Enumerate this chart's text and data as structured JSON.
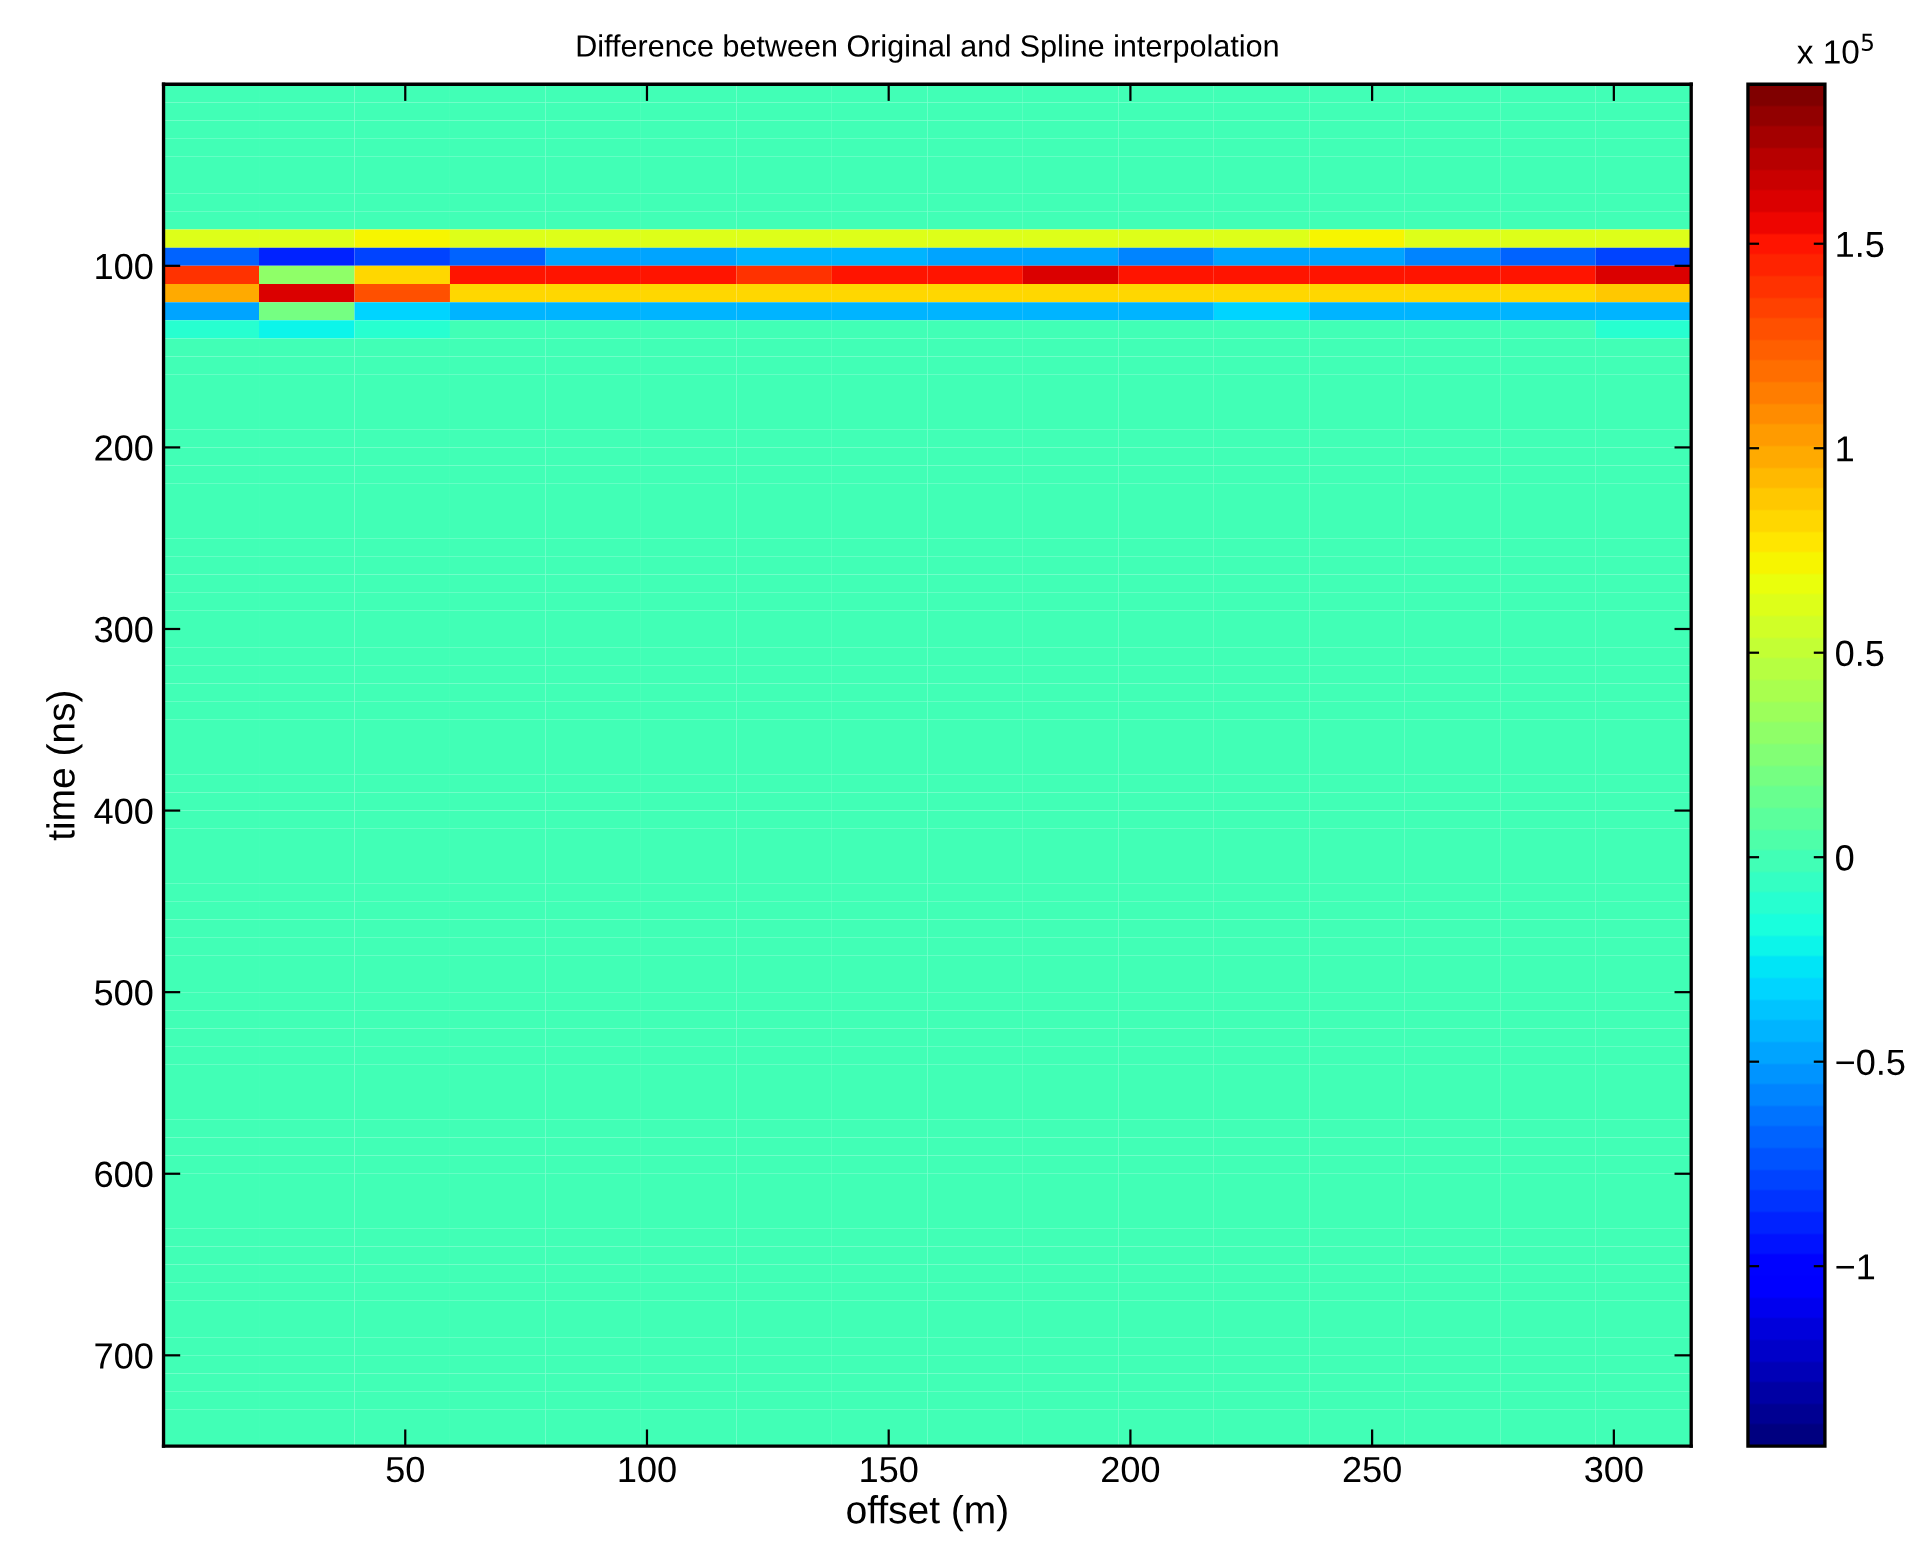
{
  "chart_data": {
    "type": "heatmap",
    "title": "Difference between Original and Spline interpolation",
    "xlabel": "offset (m)",
    "ylabel": "time (ns)",
    "clabel": "x 10$^{5}$",
    "xlim": [
      0,
      316
    ],
    "ylim": [
      750,
      0
    ],
    "xticks": [
      50,
      100,
      150,
      200,
      250,
      300
    ],
    "yticks": [
      100,
      200,
      300,
      400,
      500,
      600,
      700
    ],
    "clim": [
      -1.44,
      1.89
    ],
    "cticks": [
      {
        "value": -1,
        "label": "−1"
      },
      {
        "value": -0.5,
        "label": "−0.5"
      },
      0,
      0.5,
      1,
      1.5
    ],
    "cells": [
      [
        0,
        0,
        0,
        0,
        0,
        0,
        0,
        0,
        0,
        0,
        0,
        0,
        0,
        0,
        0,
        0
      ],
      [
        0,
        0,
        0,
        0,
        0,
        0,
        0,
        0,
        0,
        0,
        0,
        0,
        0,
        0,
        0,
        0
      ],
      [
        0,
        0,
        0,
        0,
        0,
        0,
        0,
        0,
        0,
        0,
        0,
        0,
        0,
        0,
        0,
        0
      ],
      [
        0,
        0,
        0,
        0,
        0,
        0,
        0,
        0,
        0,
        0,
        0,
        0,
        0,
        0,
        0,
        0
      ],
      [
        0,
        0,
        0,
        0,
        0,
        0,
        0,
        0,
        0,
        0,
        0,
        0,
        0,
        0,
        0,
        0
      ],
      [
        0,
        0,
        0,
        0,
        0,
        0,
        0,
        0,
        0,
        0,
        0,
        0,
        0,
        0,
        0,
        0
      ],
      [
        0,
        0,
        0,
        0,
        0,
        0,
        0,
        0,
        0,
        0,
        0,
        0,
        0,
        0,
        0,
        0
      ],
      [
        0,
        0,
        0,
        0,
        0,
        0,
        0,
        0,
        0,
        0,
        0,
        0,
        0,
        0,
        0,
        0
      ],
      [
        0.6,
        0.6,
        0.7,
        0.6,
        0.6,
        0.6,
        0.6,
        0.6,
        0.6,
        0.6,
        0.6,
        0.6,
        0.7,
        0.6,
        0.6,
        0.6
      ],
      [
        -0.7,
        -0.9,
        -0.8,
        -0.7,
        -0.5,
        -0.5,
        -0.4,
        -0.4,
        -0.5,
        -0.5,
        -0.6,
        -0.5,
        -0.5,
        -0.6,
        -0.7,
        -0.8
      ],
      [
        1.4,
        0.3,
        0.8,
        1.5,
        1.5,
        1.5,
        1.4,
        1.5,
        1.5,
        1.6,
        1.5,
        1.5,
        1.5,
        1.5,
        1.5,
        1.6
      ],
      [
        1.0,
        1.6,
        1.3,
        0.8,
        0.8,
        0.8,
        0.8,
        0.8,
        0.8,
        0.8,
        0.8,
        0.8,
        0.8,
        0.8,
        0.8,
        0.9
      ],
      [
        -0.5,
        0.2,
        -0.3,
        -0.4,
        -0.4,
        -0.4,
        -0.4,
        -0.4,
        -0.4,
        -0.4,
        -0.4,
        -0.3,
        -0.4,
        -0.4,
        -0.4,
        -0.4
      ],
      [
        -0.1,
        -0.2,
        -0.1,
        0,
        0,
        0,
        0,
        0,
        0,
        0,
        0,
        0,
        0,
        0,
        0,
        -0.1
      ],
      [
        0,
        0,
        0,
        0,
        0,
        0,
        0,
        0,
        0,
        0,
        0,
        0,
        0,
        0,
        0,
        0
      ],
      [
        0,
        0,
        0,
        0,
        0,
        0,
        0,
        0,
        0,
        0,
        0,
        0,
        0,
        0,
        0,
        0
      ],
      [
        0,
        0,
        0,
        0,
        0,
        0,
        0,
        0,
        0,
        0,
        0,
        0,
        0,
        0,
        0,
        0
      ],
      [
        0,
        0,
        0,
        0,
        0,
        0,
        0,
        0,
        0,
        0,
        0,
        0,
        0,
        0,
        0,
        0
      ],
      [
        0,
        0,
        0,
        0,
        0,
        0,
        0,
        0,
        0,
        0,
        0,
        0,
        0,
        0,
        0,
        0
      ],
      [
        0,
        0,
        0,
        0,
        0,
        0,
        0,
        0,
        0,
        0,
        0,
        0,
        0,
        0,
        0,
        0
      ],
      [
        0,
        0,
        0,
        0,
        0,
        0,
        0,
        0,
        0,
        0,
        0,
        0,
        0,
        0,
        0,
        0
      ],
      [
        0,
        0,
        0,
        0,
        0,
        0,
        0,
        0,
        0,
        0,
        0,
        0,
        0,
        0,
        0,
        0
      ],
      [
        0,
        0,
        0,
        0,
        0,
        0,
        0,
        0,
        0,
        0,
        0,
        0,
        0,
        0,
        0,
        0
      ],
      [
        0,
        0,
        0,
        0,
        0,
        0,
        0,
        0,
        0,
        0,
        0,
        0,
        0,
        0,
        0,
        0
      ],
      [
        0,
        0,
        0,
        0,
        0,
        0,
        0,
        0,
        0,
        0,
        0,
        0,
        0,
        0,
        0,
        0
      ],
      [
        0,
        0,
        0,
        0,
        0,
        0,
        0,
        0,
        0,
        0,
        0,
        0,
        0,
        0,
        0,
        0
      ],
      [
        0,
        0,
        0,
        0,
        0,
        0,
        0,
        0,
        0,
        0,
        0,
        0,
        0,
        0,
        0,
        0
      ],
      [
        0,
        0,
        0,
        0,
        0,
        0,
        0,
        0,
        0,
        0,
        0,
        0,
        0,
        0,
        0,
        0
      ],
      [
        0,
        0,
        0,
        0,
        0,
        0,
        0,
        0,
        0,
        0,
        0,
        0,
        0,
        0,
        0,
        0
      ],
      [
        0,
        0,
        0,
        0,
        0,
        0,
        0,
        0,
        0,
        0,
        0,
        0,
        0,
        0,
        0,
        0
      ],
      [
        0,
        0,
        0,
        0,
        0,
        0,
        0,
        0,
        0,
        0,
        0,
        0,
        0,
        0,
        0,
        0
      ],
      [
        0,
        0,
        0,
        0,
        0,
        0,
        0,
        0,
        0,
        0,
        0,
        0,
        0,
        0,
        0,
        0
      ],
      [
        0,
        0,
        0,
        0,
        0,
        0,
        0,
        0,
        0,
        0,
        0,
        0,
        0,
        0,
        0,
        0
      ],
      [
        0,
        0,
        0,
        0,
        0,
        0,
        0,
        0,
        0,
        0,
        0,
        0,
        0,
        0,
        0,
        0
      ],
      [
        0,
        0,
        0,
        0,
        0,
        0,
        0,
        0,
        0,
        0,
        0,
        0,
        0,
        0,
        0,
        0
      ],
      [
        0,
        0,
        0,
        0,
        0,
        0,
        0,
        0,
        0,
        0,
        0,
        0,
        0,
        0,
        0,
        0
      ],
      [
        0,
        0,
        0,
        0,
        0,
        0,
        0,
        0,
        0,
        0,
        0,
        0,
        0,
        0,
        0,
        0
      ],
      [
        0,
        0,
        0,
        0,
        0,
        0,
        0,
        0,
        0,
        0,
        0,
        0,
        0,
        0,
        0,
        0
      ],
      [
        0,
        0,
        0,
        0,
        0,
        0,
        0,
        0,
        0,
        0,
        0,
        0,
        0,
        0,
        0,
        0
      ],
      [
        0,
        0,
        0,
        0,
        0,
        0,
        0,
        0,
        0,
        0,
        0,
        0,
        0,
        0,
        0,
        0
      ],
      [
        0,
        0,
        0,
        0,
        0,
        0,
        0,
        0,
        0,
        0,
        0,
        0,
        0,
        0,
        0,
        0
      ],
      [
        0,
        0,
        0,
        0,
        0,
        0,
        0,
        0,
        0,
        0,
        0,
        0,
        0,
        0,
        0,
        0
      ],
      [
        0,
        0,
        0,
        0,
        0,
        0,
        0,
        0,
        0,
        0,
        0,
        0,
        0,
        0,
        0,
        0
      ],
      [
        0,
        0,
        0,
        0,
        0,
        0,
        0,
        0,
        0,
        0,
        0,
        0,
        0,
        0,
        0,
        0
      ],
      [
        0,
        0,
        0,
        0,
        0,
        0,
        0,
        0,
        0,
        0,
        0,
        0,
        0,
        0,
        0,
        0
      ],
      [
        0,
        0,
        0,
        0,
        0,
        0,
        0,
        0,
        0,
        0,
        0,
        0,
        0,
        0,
        0,
        0
      ],
      [
        0,
        0,
        0,
        0,
        0,
        0,
        0,
        0,
        0,
        0,
        0,
        0,
        0,
        0,
        0,
        0
      ],
      [
        0,
        0,
        0,
        0,
        0,
        0,
        0,
        0,
        0,
        0,
        0,
        0,
        0,
        0,
        0,
        0
      ],
      [
        0,
        0,
        0,
        0,
        0,
        0,
        0,
        0,
        0,
        0,
        0,
        0,
        0,
        0,
        0,
        0
      ],
      [
        0,
        0,
        0,
        0,
        0,
        0,
        0,
        0,
        0,
        0,
        0,
        0,
        0,
        0,
        0,
        0
      ],
      [
        0,
        0,
        0,
        0,
        0,
        0,
        0,
        0,
        0,
        0,
        0,
        0,
        0,
        0,
        0,
        0
      ],
      [
        0,
        0,
        0,
        0,
        0,
        0,
        0,
        0,
        0,
        0,
        0,
        0,
        0,
        0,
        0,
        0
      ],
      [
        0,
        0,
        0,
        0,
        0,
        0,
        0,
        0,
        0,
        0,
        0,
        0,
        0,
        0,
        0,
        0
      ],
      [
        0,
        0,
        0,
        0,
        0,
        0,
        0,
        0,
        0,
        0,
        0,
        0,
        0,
        0,
        0,
        0
      ],
      [
        0,
        0,
        0,
        0,
        0,
        0,
        0,
        0,
        0,
        0,
        0,
        0,
        0,
        0,
        0,
        0
      ],
      [
        0,
        0,
        0,
        0,
        0,
        0,
        0,
        0,
        0,
        0,
        0,
        0,
        0,
        0,
        0,
        0
      ],
      [
        0,
        0,
        0,
        0,
        0,
        0,
        0,
        0,
        0,
        0,
        0,
        0,
        0,
        0,
        0,
        0
      ],
      [
        0,
        0,
        0,
        0,
        0,
        0,
        0,
        0,
        0,
        0,
        0,
        0,
        0,
        0,
        0,
        0
      ],
      [
        0,
        0,
        0,
        0,
        0,
        0,
        0,
        0,
        0,
        0,
        0,
        0,
        0,
        0,
        0,
        0
      ],
      [
        0,
        0,
        0,
        0,
        0,
        0,
        0,
        0,
        0,
        0,
        0,
        0,
        0,
        0,
        0,
        0
      ],
      [
        0,
        0,
        0,
        0,
        0,
        0,
        0,
        0,
        0,
        0,
        0,
        0,
        0,
        0,
        0,
        0
      ],
      [
        0,
        0,
        0,
        0,
        0,
        0,
        0,
        0,
        0,
        0,
        0,
        0,
        0,
        0,
        0,
        0
      ],
      [
        0,
        0,
        0,
        0,
        0,
        0,
        0,
        0,
        0,
        0,
        0,
        0,
        0,
        0,
        0,
        0
      ],
      [
        0,
        0,
        0,
        0,
        0,
        0,
        0,
        0,
        0,
        0,
        0,
        0,
        0,
        0,
        0,
        0
      ],
      [
        0,
        0,
        0,
        0,
        0,
        0,
        0,
        0,
        0,
        0,
        0,
        0,
        0,
        0,
        0,
        0
      ],
      [
        0,
        0,
        0,
        0,
        0,
        0,
        0,
        0,
        0,
        0,
        0,
        0,
        0,
        0,
        0,
        0
      ],
      [
        0,
        0,
        0,
        0,
        0,
        0,
        0,
        0,
        0,
        0,
        0,
        0,
        0,
        0,
        0,
        0
      ],
      [
        0,
        0,
        0,
        0,
        0,
        0,
        0,
        0,
        0,
        0,
        0,
        0,
        0,
        0,
        0,
        0
      ],
      [
        0,
        0,
        0,
        0,
        0,
        0,
        0,
        0,
        0,
        0,
        0,
        0,
        0,
        0,
        0,
        0
      ],
      [
        0,
        0,
        0,
        0,
        0,
        0,
        0,
        0,
        0,
        0,
        0,
        0,
        0,
        0,
        0,
        0
      ],
      [
        0,
        0,
        0,
        0,
        0,
        0,
        0,
        0,
        0,
        0,
        0,
        0,
        0,
        0,
        0,
        0
      ],
      [
        0,
        0,
        0,
        0,
        0,
        0,
        0,
        0,
        0,
        0,
        0,
        0,
        0,
        0,
        0,
        0
      ],
      [
        0,
        0,
        0,
        0,
        0,
        0,
        0,
        0,
        0,
        0,
        0,
        0,
        0,
        0,
        0,
        0
      ],
      [
        0,
        0,
        0,
        0,
        0,
        0,
        0,
        0,
        0,
        0,
        0,
        0,
        0,
        0,
        0,
        0
      ],
      [
        0,
        0,
        0,
        0,
        0,
        0,
        0,
        0,
        0,
        0,
        0,
        0,
        0,
        0,
        0,
        0
      ]
    ]
  }
}
